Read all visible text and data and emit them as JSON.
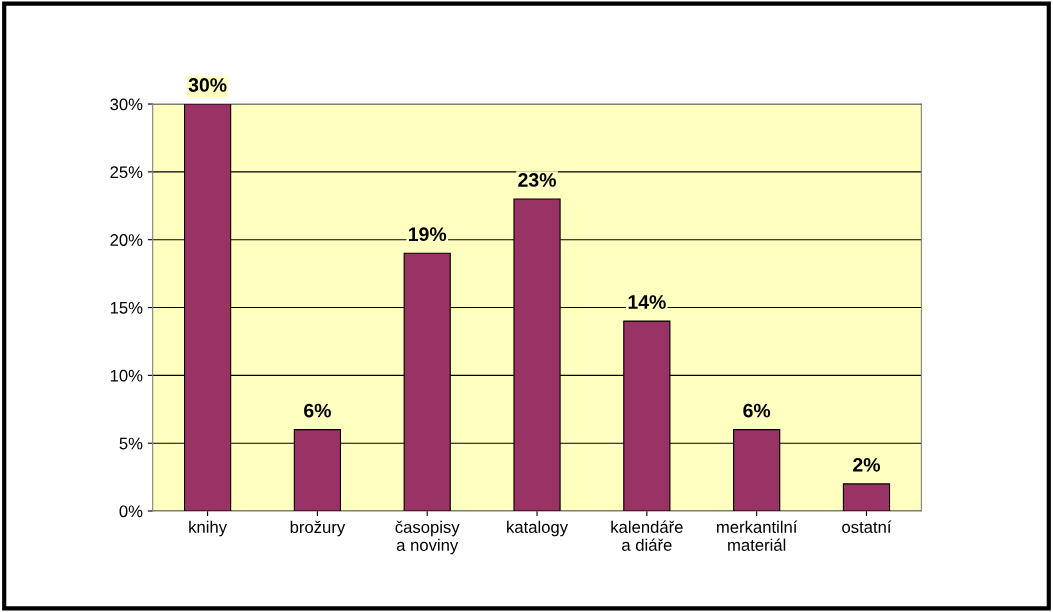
{
  "chart_data": {
    "type": "bar",
    "categories": [
      "knihy",
      "brožury",
      "časopisy\na noviny",
      "katalogy",
      "kalendáře\na diáře",
      "merkantilní\nmateriál",
      "ostatní"
    ],
    "values": [
      30,
      6,
      19,
      23,
      14,
      6,
      2
    ],
    "value_labels": [
      "30%",
      "6%",
      "19%",
      "23%",
      "14%",
      "6%",
      "2%"
    ],
    "color": "#993366",
    "ylim": [
      0,
      30
    ],
    "yticks": [
      {
        "value": 0,
        "label": "0%"
      },
      {
        "value": 5,
        "label": "5%"
      },
      {
        "value": 10,
        "label": "10%"
      },
      {
        "value": 15,
        "label": "15%"
      },
      {
        "value": 20,
        "label": "20%"
      },
      {
        "value": 25,
        "label": "25%"
      },
      {
        "value": 30,
        "label": "30%"
      }
    ],
    "grid": "y",
    "legend": false
  }
}
